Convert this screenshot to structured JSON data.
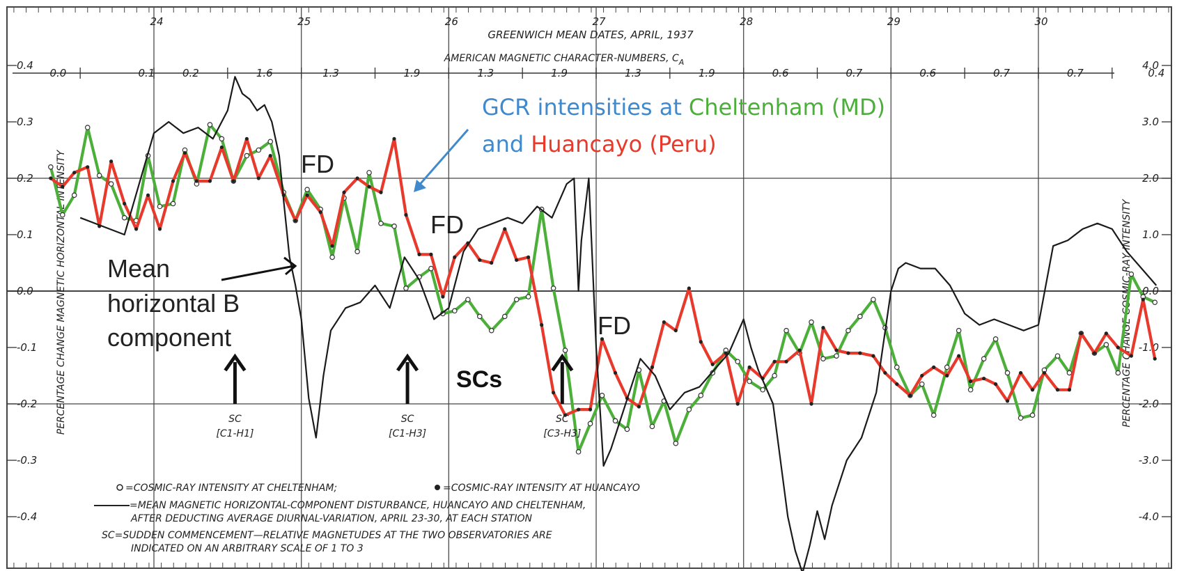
{
  "chart_data": {
    "type": "line",
    "title": "GREENWICH MEAN DATES, APRIL, 1937",
    "subtitle": "AMERICAN MAGNETIC CHARACTER-NUMBERS, C",
    "subtitle_sub": "A",
    "x": {
      "ticks": [
        "24",
        "25",
        "26",
        "27",
        "28",
        "29",
        "30"
      ],
      "range": [
        23.2,
        30.95
      ]
    },
    "y_left": {
      "label": "PERCENTAGE CHANGE MAGNETIC HORIZONTAL INTENSITY",
      "range": [
        -0.5,
        0.47
      ],
      "ticks": [
        {
          "v": 0.4,
          "t": "0.4"
        },
        {
          "v": 0.3,
          "t": "0.3"
        },
        {
          "v": 0.2,
          "t": "0.2"
        },
        {
          "v": 0.1,
          "t": "0.1"
        },
        {
          "v": 0.0,
          "t": "0.0"
        },
        {
          "v": -0.1,
          "t": "-0.1"
        },
        {
          "v": -0.2,
          "t": "-0.2"
        },
        {
          "v": -0.3,
          "t": "-0.3"
        },
        {
          "v": -0.4,
          "t": "-0.4"
        }
      ]
    },
    "y_right": {
      "label": "PERCENTAGE CHANGE COSMIC-RAY INTENSITY",
      "ticks": [
        {
          "v": 4.0,
          "t": "4.0"
        },
        {
          "v": 3.0,
          "t": "3.0"
        },
        {
          "v": 2.0,
          "t": "2.0"
        },
        {
          "v": 1.0,
          "t": "1.0"
        },
        {
          "v": 0.0,
          "t": "0.0"
        },
        {
          "v": -1.0,
          "t": "-1.0"
        },
        {
          "v": -2.0,
          "t": "-2.0"
        },
        {
          "v": -3.0,
          "t": "-3.0"
        },
        {
          "v": -4.0,
          "t": "-4.0"
        }
      ]
    },
    "character_numbers": [
      {
        "x": 23.35,
        "t": "0.0"
      },
      {
        "x": 23.95,
        "t": "0.1"
      },
      {
        "x": 24.25,
        "t": "0.2"
      },
      {
        "x": 24.75,
        "t": "1.6"
      },
      {
        "x": 25.2,
        "t": "1.3"
      },
      {
        "x": 25.75,
        "t": "1.9"
      },
      {
        "x": 26.25,
        "t": "1.3"
      },
      {
        "x": 26.75,
        "t": "1.9"
      },
      {
        "x": 27.25,
        "t": "1.3"
      },
      {
        "x": 27.75,
        "t": "1.9"
      },
      {
        "x": 28.25,
        "t": "0.6"
      },
      {
        "x": 28.75,
        "t": "0.7"
      },
      {
        "x": 29.25,
        "t": "0.6"
      },
      {
        "x": 29.75,
        "t": "0.7"
      },
      {
        "x": 30.25,
        "t": "0.7"
      },
      {
        "x": 30.8,
        "t": "0.4"
      }
    ],
    "grid": true,
    "series": [
      {
        "name": "GCR intensities at Cheltenham (MD)",
        "color": "#4caf3a",
        "x": [
          23.3,
          23.38,
          23.46,
          23.55,
          23.63,
          23.71,
          23.8,
          23.88,
          23.96,
          24.04,
          24.13,
          24.21,
          24.29,
          24.38,
          24.46,
          24.54,
          24.63,
          24.71,
          24.79,
          24.88,
          24.96,
          25.04,
          25.13,
          25.21,
          25.29,
          25.38,
          25.46,
          25.54,
          25.63,
          25.71,
          25.8,
          25.88,
          25.96,
          26.04,
          26.13,
          26.21,
          26.29,
          26.38,
          26.46,
          26.54,
          26.63,
          26.71,
          26.79,
          26.88,
          26.96,
          27.04,
          27.13,
          27.21,
          27.29,
          27.38,
          27.46,
          27.54,
          27.63,
          27.71,
          27.79,
          27.88,
          27.96,
          28.04,
          28.13,
          28.21,
          28.29,
          28.38,
          28.46,
          28.54,
          28.63,
          28.71,
          28.79,
          28.88,
          28.96,
          29.04,
          29.13,
          29.21,
          29.29,
          29.38,
          29.46,
          29.54,
          29.63,
          29.71,
          29.79,
          29.88,
          29.96,
          30.04,
          30.13,
          30.21,
          30.29,
          30.38,
          30.46,
          30.54,
          30.63,
          30.71,
          30.79
        ],
        "values": [
          2.2,
          1.35,
          1.7,
          2.9,
          2.05,
          1.9,
          1.3,
          1.25,
          2.4,
          1.5,
          1.55,
          2.5,
          1.9,
          2.95,
          2.7,
          1.95,
          2.4,
          2.5,
          2.65,
          1.75,
          1.25,
          1.8,
          1.45,
          0.6,
          1.65,
          0.7,
          2.1,
          1.2,
          1.15,
          0.05,
          0.25,
          0.4,
          -0.4,
          -0.35,
          -0.15,
          -0.45,
          -0.7,
          -0.45,
          -0.15,
          -0.1,
          1.45,
          0.05,
          -1.05,
          -2.85,
          -2.35,
          -1.85,
          -2.3,
          -2.45,
          -1.4,
          -2.4,
          -1.95,
          -2.7,
          -2.1,
          -1.85,
          -1.45,
          -1.05,
          -1.25,
          -1.6,
          -1.75,
          -1.5,
          -0.7,
          -1.1,
          -0.55,
          -1.2,
          -1.15,
          -0.7,
          -0.45,
          -0.15,
          -0.65,
          -1.35,
          -1.85,
          -1.65,
          -2.2,
          -1.35,
          -0.7,
          -1.75,
          -1.2,
          -0.85,
          -1.45,
          -2.25,
          -2.2,
          -1.4,
          -1.15,
          -1.45,
          -0.75,
          -1.1,
          -0.95,
          -1.45,
          0.3,
          -0.1,
          -0.2
        ],
        "markers": "open"
      },
      {
        "name": "Huancayo (Peru)",
        "color": "#e83a2c",
        "x": [
          23.3,
          23.38,
          23.46,
          23.55,
          23.63,
          23.71,
          23.8,
          23.88,
          23.96,
          24.04,
          24.13,
          24.21,
          24.29,
          24.38,
          24.46,
          24.54,
          24.63,
          24.71,
          24.79,
          24.88,
          24.96,
          25.04,
          25.13,
          25.21,
          25.29,
          25.38,
          25.46,
          25.54,
          25.63,
          25.71,
          25.8,
          25.88,
          25.96,
          26.04,
          26.13,
          26.21,
          26.29,
          26.38,
          26.46,
          26.54,
          26.63,
          26.71,
          26.79,
          26.88,
          26.96,
          27.04,
          27.13,
          27.21,
          27.29,
          27.38,
          27.46,
          27.54,
          27.63,
          27.71,
          27.79,
          27.88,
          27.96,
          28.04,
          28.13,
          28.21,
          28.29,
          28.38,
          28.46,
          28.54,
          28.63,
          28.71,
          28.79,
          28.88,
          28.96,
          29.04,
          29.13,
          29.21,
          29.29,
          29.38,
          29.46,
          29.54,
          29.63,
          29.71,
          29.79,
          29.88,
          29.96,
          30.04,
          30.13,
          30.21,
          30.29,
          30.38,
          30.46,
          30.54,
          30.63,
          30.71,
          30.79
        ],
        "values": [
          2.0,
          1.85,
          2.1,
          2.2,
          1.15,
          2.3,
          1.55,
          1.1,
          1.7,
          1.1,
          1.95,
          2.45,
          1.95,
          1.95,
          2.55,
          1.95,
          2.7,
          2.0,
          2.4,
          1.7,
          1.25,
          1.7,
          1.4,
          0.8,
          1.75,
          2.0,
          1.85,
          1.75,
          2.7,
          1.35,
          0.65,
          0.65,
          -0.1,
          0.6,
          0.85,
          0.55,
          0.5,
          1.1,
          0.55,
          0.6,
          -0.6,
          -1.8,
          -2.2,
          -2.1,
          -2.1,
          -0.85,
          -1.45,
          -1.9,
          -2.05,
          -1.35,
          -0.55,
          -0.7,
          0.05,
          -0.9,
          -1.3,
          -1.1,
          -2.0,
          -1.35,
          -1.55,
          -1.25,
          -1.25,
          -1.05,
          -2.0,
          -0.65,
          -1.05,
          -1.1,
          -1.1,
          -1.15,
          -1.45,
          -1.65,
          -1.85,
          -1.5,
          -1.35,
          -1.5,
          -1.15,
          -1.6,
          -1.55,
          -1.65,
          -1.95,
          -1.45,
          -1.75,
          -1.45,
          -1.75,
          -1.75,
          -0.75,
          -1.1,
          -0.75,
          -1.0,
          -1.15,
          -0.15,
          -1.2
        ],
        "markers": "filled"
      },
      {
        "name": "Mean horizontal B component",
        "color": "#1a1a1a",
        "x": [
          23.5,
          23.7,
          23.8,
          23.9,
          24.0,
          24.1,
          24.2,
          24.3,
          24.4,
          24.5,
          24.55,
          24.6,
          24.65,
          24.7,
          24.75,
          24.8,
          24.85,
          24.88,
          24.92,
          24.96,
          25.0,
          25.05,
          25.1,
          25.15,
          25.2,
          25.3,
          25.4,
          25.5,
          25.6,
          25.7,
          25.8,
          25.9,
          26.0,
          26.1,
          26.2,
          26.3,
          26.4,
          26.5,
          26.6,
          26.7,
          26.8,
          26.85,
          26.88,
          26.9,
          26.95,
          27.0,
          27.05,
          27.1,
          27.2,
          27.3,
          27.4,
          27.5,
          27.6,
          27.7,
          27.8,
          27.9,
          28.0,
          28.05,
          28.1,
          28.2,
          28.3,
          28.35,
          28.4,
          28.45,
          28.5,
          28.55,
          28.6,
          28.7,
          28.8,
          28.9,
          29.0,
          29.05,
          29.1,
          29.2,
          29.3,
          29.4,
          29.5,
          29.6,
          29.7,
          29.8,
          29.9,
          30.0,
          30.1,
          30.2,
          30.3,
          30.4,
          30.5,
          30.6,
          30.7,
          30.8
        ],
        "values": [
          0.13,
          0.11,
          0.1,
          0.19,
          0.28,
          0.3,
          0.28,
          0.29,
          0.27,
          0.32,
          0.38,
          0.35,
          0.34,
          0.32,
          0.33,
          0.3,
          0.24,
          0.16,
          0.06,
          0.01,
          -0.05,
          -0.19,
          -0.26,
          -0.15,
          -0.07,
          -0.03,
          -0.02,
          0.01,
          -0.03,
          0.06,
          0.02,
          -0.05,
          -0.03,
          0.07,
          0.11,
          0.12,
          0.13,
          0.12,
          0.15,
          0.13,
          0.19,
          0.2,
          0.0,
          0.09,
          0.2,
          -0.1,
          -0.31,
          -0.28,
          -0.2,
          -0.12,
          -0.15,
          -0.21,
          -0.18,
          -0.17,
          -0.14,
          -0.11,
          -0.05,
          -0.1,
          -0.14,
          -0.2,
          -0.4,
          -0.46,
          -0.5,
          -0.45,
          -0.39,
          -0.44,
          -0.38,
          -0.3,
          -0.26,
          -0.18,
          0.0,
          0.04,
          0.05,
          0.04,
          0.04,
          0.01,
          -0.04,
          -0.06,
          -0.05,
          -0.06,
          -0.07,
          -0.06,
          0.08,
          0.09,
          0.11,
          0.12,
          0.11,
          0.07,
          0.04,
          0.01
        ],
        "markers": "none"
      }
    ],
    "sudden_commencements": [
      {
        "x": 24.55,
        "label": "SC",
        "bracket": "[C1-H1]"
      },
      {
        "x": 25.72,
        "label": "SC",
        "bracket": "[C1-H3]"
      },
      {
        "x": 26.77,
        "label": "SC",
        "bracket": "[C3-H3]"
      }
    ],
    "legend": {
      "line1_a": "=COSMIC-RAY INTENSITY AT CHELTENHAM;",
      "line1_b": "=COSMIC-RAY INTENSITY AT HUANCAYO",
      "line2": "=MEAN MAGNETIC HORIZONTAL-COMPONENT DISTURBANCE, HUANCAYO AND CHELTENHAM,",
      "line3": "AFTER DEDUCTING AVERAGE DIURNAL-VARIATION, APRIL 23-30, AT EACH STATION",
      "line4": "SC=SUDDEN COMMENCEMENT—RELATIVE MAGNETUDES AT THE TWO OBSERVATORIES ARE",
      "line5": "INDICATED ON AN ARBITRARY SCALE OF 1 TO 3"
    },
    "annotations": {
      "gcr_part1": "GCR intensities at",
      "gcr_part2": "Cheltenham (MD)",
      "gcr_part3": "and",
      "gcr_part4": "Huancayo (Peru)",
      "fd": "FD",
      "mean_line1": "Mean",
      "mean_line2": "horizontal B",
      "mean_line3": "component",
      "scs": "SCs"
    },
    "colors": {
      "green": "#4caf3a",
      "red": "#e83a2c",
      "blue": "#3f89cc",
      "ink": "#1a1a1a"
    }
  }
}
